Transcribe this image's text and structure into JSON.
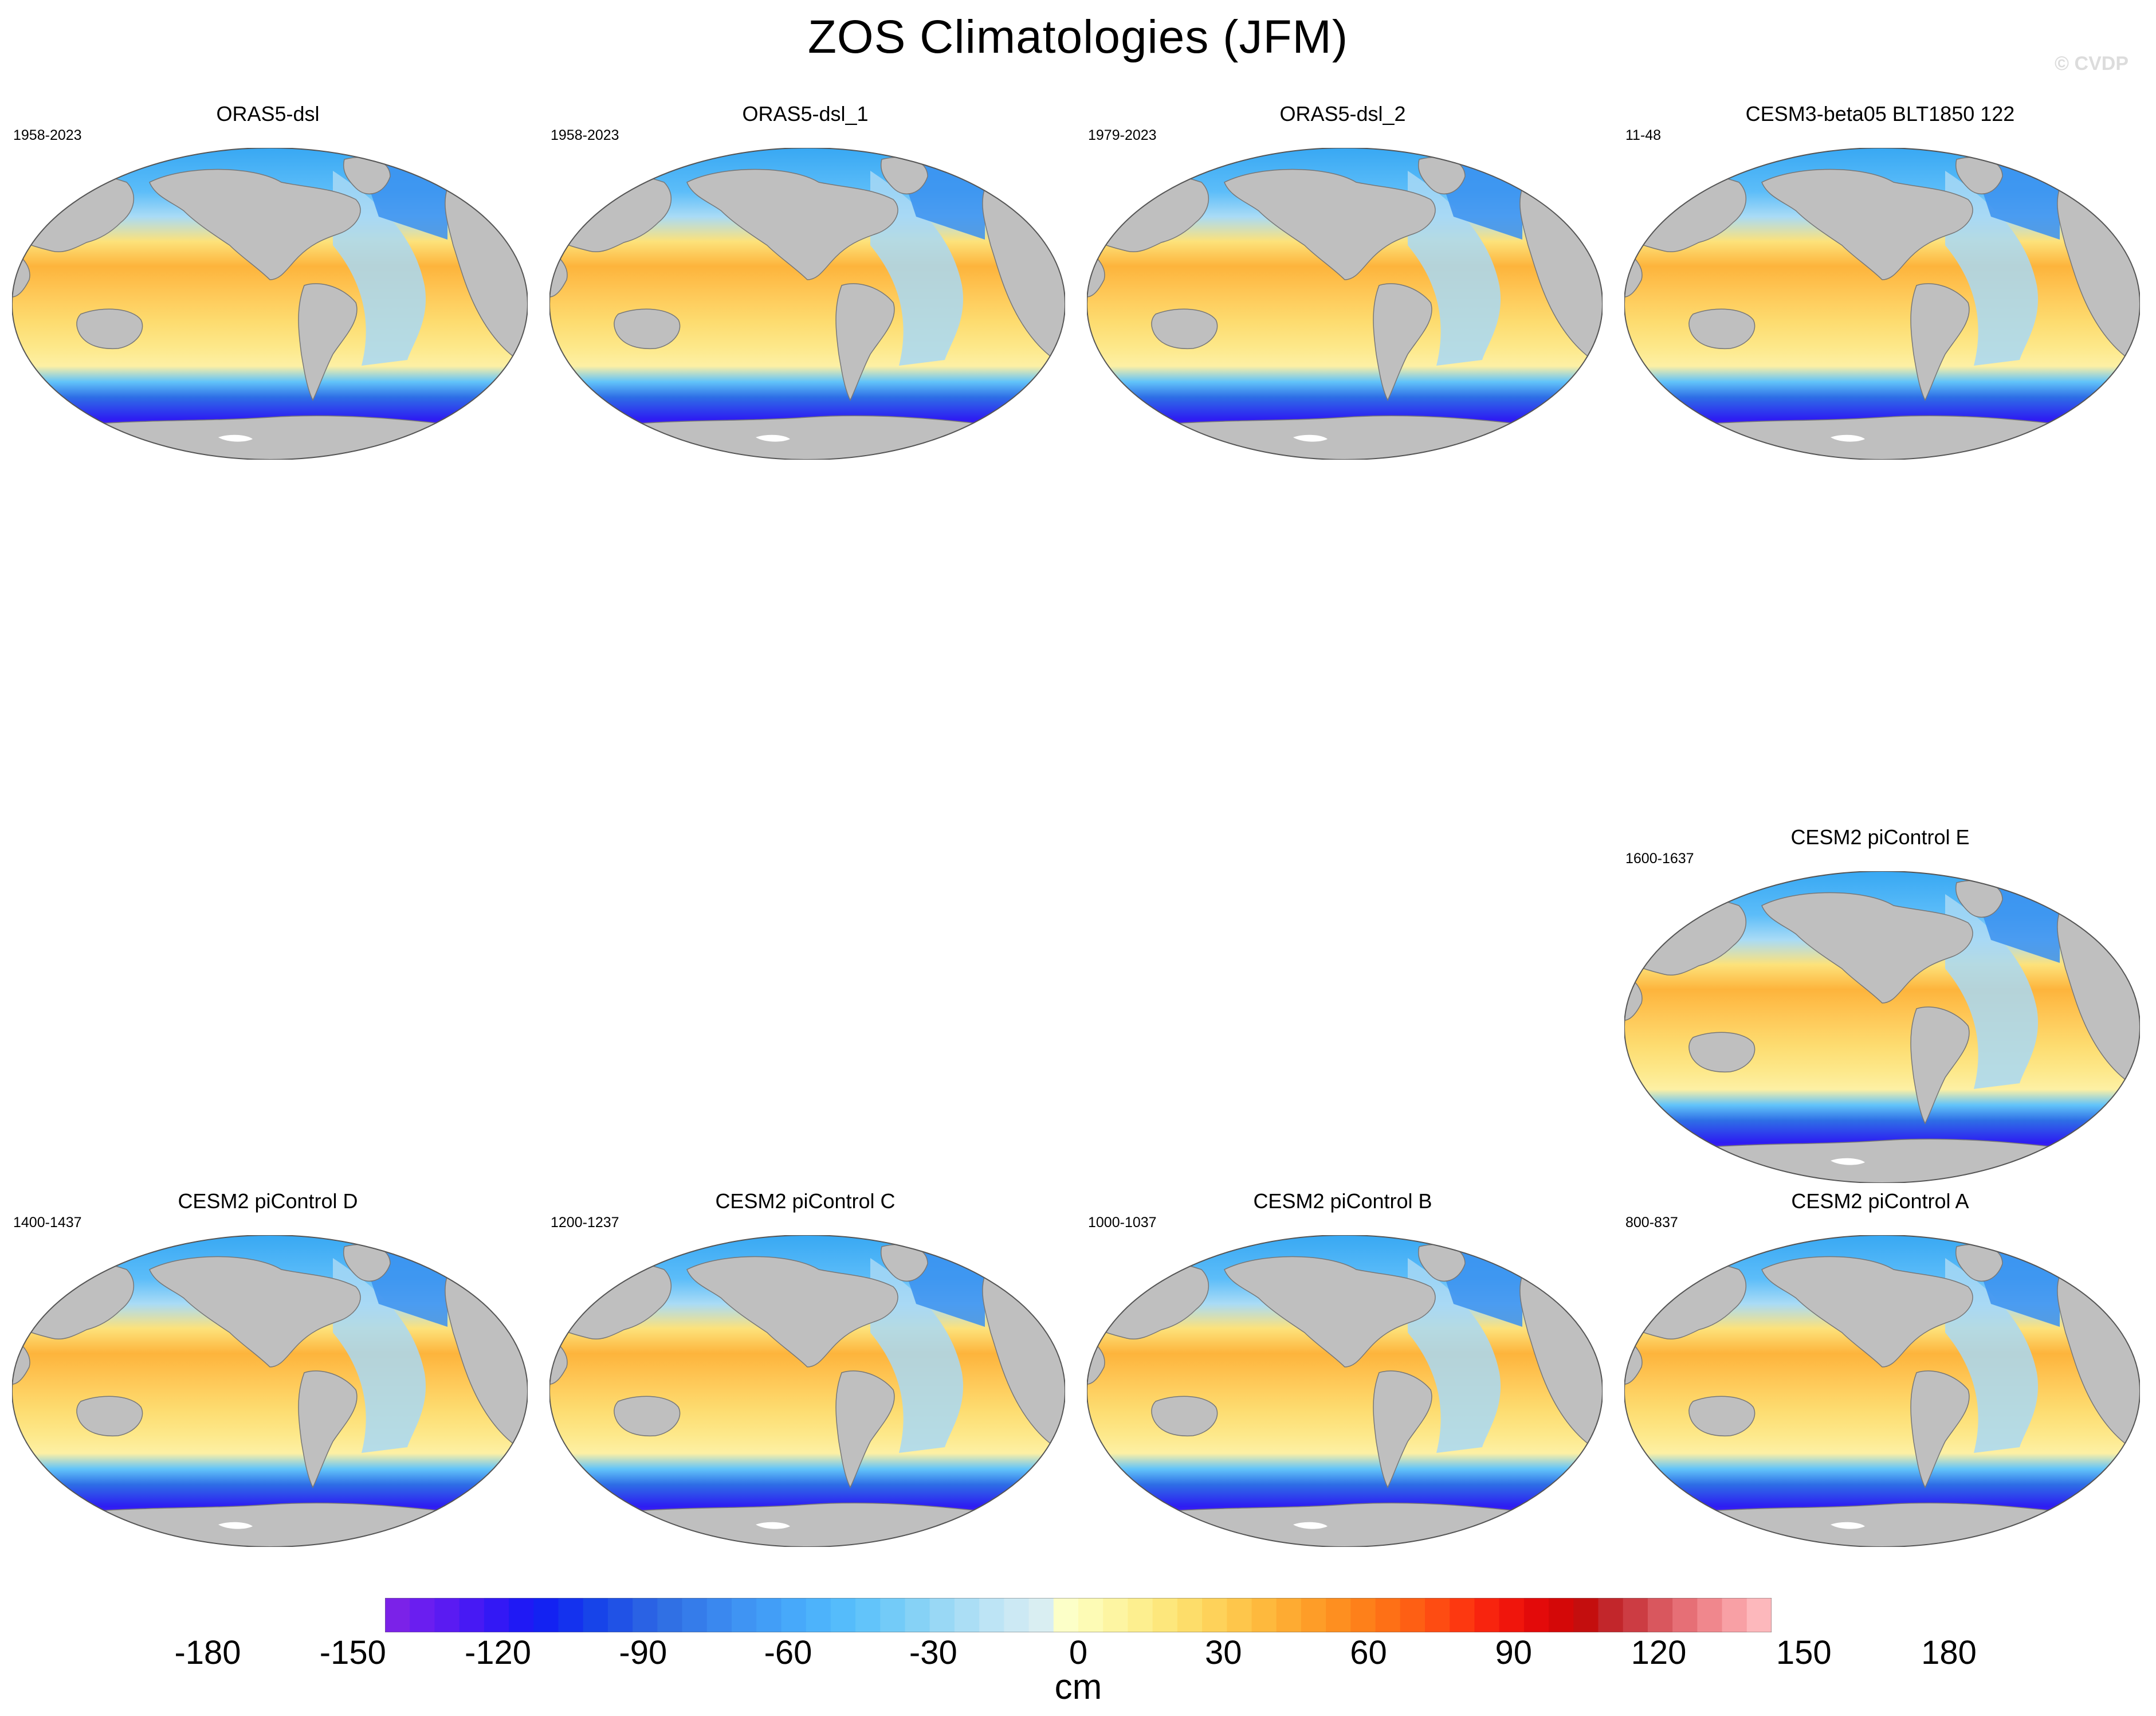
{
  "title": "ZOS Climatologies (JFM)",
  "watermark": "© CVDP",
  "panels": [
    {
      "id": "p1",
      "name": "ORAS5-dsl",
      "years": "1958-2023"
    },
    {
      "id": "p2",
      "name": "ORAS5-dsl_1",
      "years": "1958-2023"
    },
    {
      "id": "p3",
      "name": "ORAS5-dsl_2",
      "years": "1979-2023"
    },
    {
      "id": "p4",
      "name": "CESM3-beta05 BLT1850 122",
      "years": "11-48"
    },
    {
      "id": "p5",
      "name": "CESM2 piControl E",
      "years": "1600-1637"
    },
    {
      "id": "p6",
      "name": "CESM2 piControl D",
      "years": "1400-1437"
    },
    {
      "id": "p7",
      "name": "CESM2 piControl C",
      "years": "1200-1237"
    },
    {
      "id": "p8",
      "name": "CESM2 piControl B",
      "years": "1000-1037"
    },
    {
      "id": "p9",
      "name": "CESM2 piControl A",
      "years": "800-837"
    }
  ],
  "colorbar": {
    "units": "cm",
    "ticks": [
      "-180",
      "-150",
      "-120",
      "-90",
      "-60",
      "-30",
      "0",
      "30",
      "60",
      "90",
      "120",
      "150",
      "180"
    ],
    "tick_values": [
      -180,
      -150,
      -120,
      -90,
      -60,
      -30,
      0,
      30,
      60,
      90,
      120,
      150,
      180
    ],
    "colors": [
      "#7b22e8",
      "#6a1ef0",
      "#5a1bf2",
      "#4719f4",
      "#3318f5",
      "#1f19f5",
      "#1322f2",
      "#1432ee",
      "#1744e9",
      "#2052e6",
      "#2a62e4",
      "#3070e4",
      "#357cea",
      "#3a88ef",
      "#3f94f3",
      "#429ef7",
      "#47a9fa",
      "#4db3fb",
      "#55bcfb",
      "#62c4fa",
      "#73cbf8",
      "#86d2f6",
      "#99d8f5",
      "#abdef5",
      "#bde4f5",
      "#cce9f4",
      "#d9eef2",
      "#fcffc8",
      "#fdfbb5",
      "#fdf5a2",
      "#fdef8f",
      "#fde77c",
      "#fddd6a",
      "#fed25a",
      "#fec64b",
      "#feb93d",
      "#feab32",
      "#fe9d28",
      "#fe8f20",
      "#fe801a",
      "#fe7016",
      "#fe5f14",
      "#fe4c12",
      "#fd3810",
      "#f8240e",
      "#f0150c",
      "#e30a0a",
      "#d40808",
      "#c40e0e",
      "#c2262b",
      "#cc3c43",
      "#d9575e",
      "#e66f76",
      "#f0878d",
      "#f8a0a5",
      "#fdb8bc"
    ]
  }
}
